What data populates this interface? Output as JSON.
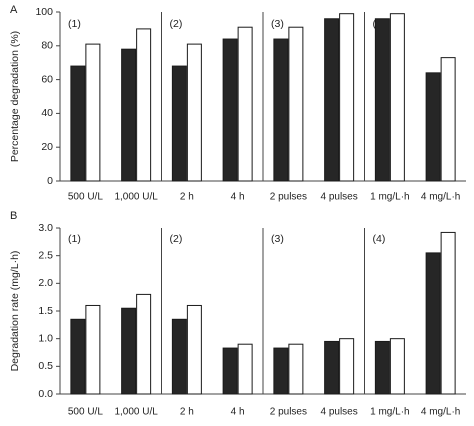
{
  "chart_data": [
    {
      "type": "bar",
      "panel_label": "A",
      "ylabel": "Percentage degradation (%)",
      "ylim": [
        0,
        100
      ],
      "yticks": [
        0,
        20,
        40,
        60,
        80,
        100
      ],
      "categories": [
        "500 U/L",
        "1,000 U/L",
        "2 h",
        "4 h",
        "2 pulses",
        "4 pulses",
        "1 mg/L·h",
        "4 mg/L·h"
      ],
      "groups": [
        {
          "label": "(1)",
          "categories": [
            0,
            1
          ]
        },
        {
          "label": "(2)",
          "categories": [
            2,
            3
          ]
        },
        {
          "label": "(3)",
          "categories": [
            4,
            5
          ]
        },
        {
          "label": "(4)",
          "categories": [
            6,
            7
          ]
        }
      ],
      "series": [
        {
          "color": "#262626",
          "values": [
            68,
            78,
            68,
            84,
            84,
            96,
            96,
            64
          ]
        },
        {
          "color": "#ffffff",
          "values": [
            81,
            90,
            81,
            91,
            91,
            99,
            99,
            73
          ]
        }
      ],
      "grid": false
    },
    {
      "type": "bar",
      "panel_label": "B",
      "ylabel": "Degradation rate (mg/L·h)",
      "ylim": [
        0,
        3.0
      ],
      "yticks": [
        "0.0",
        "0.5",
        "1.0",
        "1.5",
        "2.0",
        "2.5",
        "3.0"
      ],
      "categories": [
        "500 U/L",
        "1,000 U/L",
        "2 h",
        "4 h",
        "2 pulses",
        "4 pulses",
        "1 mg/L·h",
        "4 mg/L·h"
      ],
      "groups": [
        {
          "label": "(1)",
          "categories": [
            0,
            1
          ]
        },
        {
          "label": "(2)",
          "categories": [
            2,
            3
          ]
        },
        {
          "label": "(3)",
          "categories": [
            4,
            5
          ]
        },
        {
          "label": "(4)",
          "categories": [
            6,
            7
          ]
        }
      ],
      "series": [
        {
          "color": "#262626",
          "values": [
            1.35,
            1.55,
            1.35,
            0.83,
            0.83,
            0.95,
            0.95,
            2.55
          ]
        },
        {
          "color": "#ffffff",
          "values": [
            1.6,
            1.8,
            1.6,
            0.9,
            0.9,
            1.0,
            1.0,
            2.92
          ]
        }
      ],
      "grid": false
    }
  ]
}
